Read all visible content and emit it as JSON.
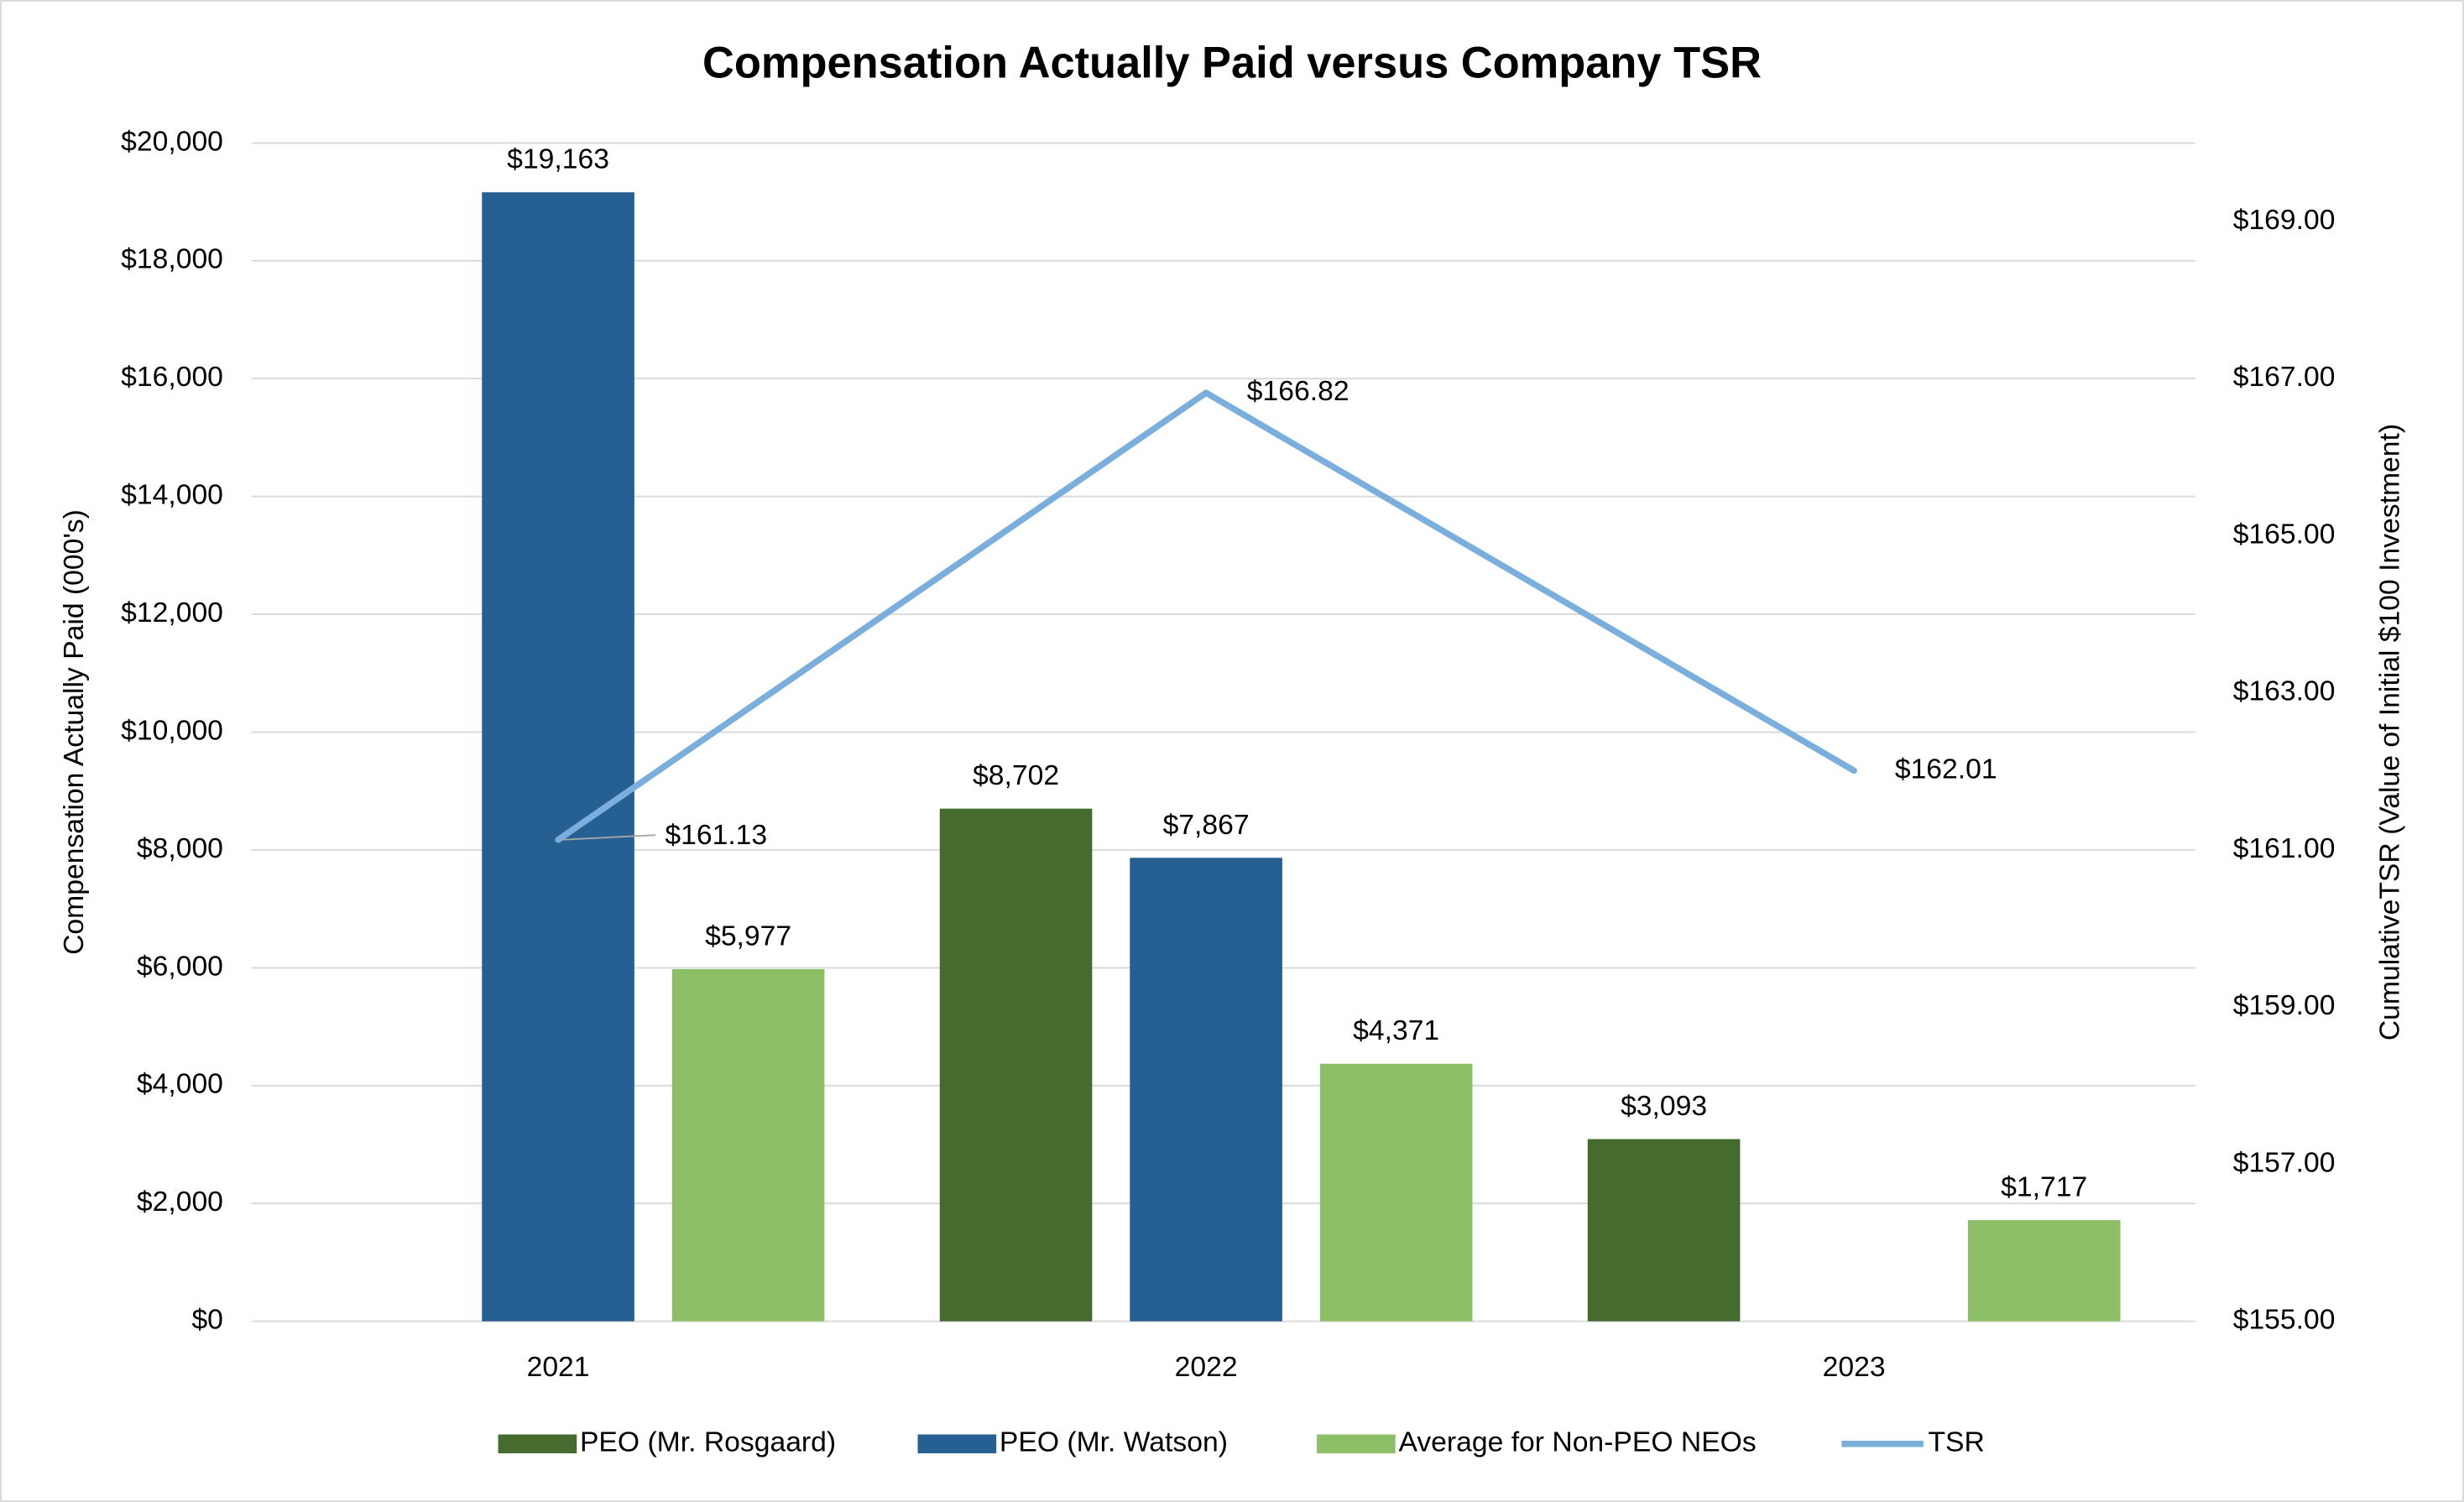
{
  "chart_data": {
    "type": "bar",
    "title": "Compensation Actually Paid versus Company TSR",
    "ylabel": "Compensation Actually Paid (000's)",
    "y2label": "CumulativeTSR (Value of Initial $100 Investment)",
    "categories": [
      "2021",
      "2022",
      "2023"
    ],
    "series": [
      {
        "name": "PEO (Mr. Rosgaard)",
        "color": "#466b2e",
        "values": [
          null,
          8702,
          3093
        ],
        "value_labels": [
          null,
          "$8,702",
          "$3,093"
        ]
      },
      {
        "name": "PEO (Mr. Watson)",
        "color": "#265f91",
        "values": [
          19163,
          7867,
          null
        ],
        "value_labels": [
          "$19,163",
          "$7,867",
          null
        ]
      },
      {
        "name": "Average for Non-PEO NEOs",
        "color": "#8dc066",
        "values": [
          5977,
          4371,
          1717
        ],
        "value_labels": [
          "$5,977",
          "$4,371",
          "$1,717"
        ]
      },
      {
        "name": "TSR",
        "type": "line",
        "axis": "y2",
        "color": "#7aaedc",
        "values": [
          161.13,
          166.82,
          162.01
        ],
        "value_labels": [
          "$161.13",
          "$166.82",
          "$162.01"
        ]
      }
    ],
    "ylim": [
      0,
      20000
    ],
    "yticks": [
      {
        "value": 0,
        "label": "$0"
      },
      {
        "value": 2000,
        "label": "$2,000"
      },
      {
        "value": 4000,
        "label": "$4,000"
      },
      {
        "value": 6000,
        "label": "$6,000"
      },
      {
        "value": 8000,
        "label": "$8,000"
      },
      {
        "value": 10000,
        "label": "$10,000"
      },
      {
        "value": 12000,
        "label": "$12,000"
      },
      {
        "value": 14000,
        "label": "$14,000"
      },
      {
        "value": 16000,
        "label": "$16,000"
      },
      {
        "value": 18000,
        "label": "$18,000"
      },
      {
        "value": 20000,
        "label": "$20,000"
      }
    ],
    "y2lim": [
      155,
      170
    ],
    "y2ticks": [
      {
        "value": 155,
        "label": "$155.00"
      },
      {
        "value": 157,
        "label": "$157.00"
      },
      {
        "value": 159,
        "label": "$159.00"
      },
      {
        "value": 161,
        "label": "$161.00"
      },
      {
        "value": 163,
        "label": "$163.00"
      },
      {
        "value": 165,
        "label": "$165.00"
      },
      {
        "value": 167,
        "label": "$167.00"
      },
      {
        "value": 169,
        "label": "$169.00"
      }
    ],
    "grid": true,
    "legend": "bottom"
  }
}
